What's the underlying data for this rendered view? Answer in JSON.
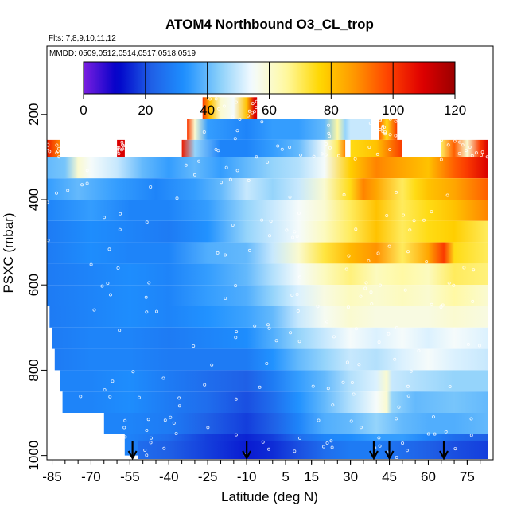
{
  "chart_data": {
    "type": "heatmap",
    "title": "ATOM4 Northbound O3_CL_trop",
    "flights_label": "Flts: 7,8,9,10,11,12",
    "dates_label": "MMDD: 0509,0512,0514,0517,0518,0519",
    "xlabel": "Latitude (deg N)",
    "ylabel": "PSXC (mbar)",
    "xlim": [
      -87,
      85
    ],
    "ylim": [
      1010,
      40
    ],
    "x_ticks": [
      -85,
      -70,
      -55,
      -40,
      -25,
      -10,
      5,
      15,
      30,
      45,
      60,
      75
    ],
    "x_tick_labels": [
      "-85",
      "-70",
      "-55",
      "-40",
      "-25",
      "-10",
      "5",
      "15",
      "30",
      "45",
      "60",
      "75"
    ],
    "y_ticks": [
      200,
      400,
      600,
      800,
      1000
    ],
    "y_tick_labels": [
      "200",
      "400",
      "600",
      "800",
      "1000"
    ],
    "colorbar": {
      "min": 0,
      "max": 120,
      "ticks": [
        0,
        20,
        40,
        60,
        80,
        100,
        120
      ],
      "tick_labels": [
        "0",
        "20",
        "40",
        "60",
        "80",
        "100",
        "120"
      ],
      "colors": [
        "#7b1fe0",
        "#0000c8",
        "#1f5fe6",
        "#1e90ff",
        "#87cefa",
        "#f5fbff",
        "#fff9a0",
        "#ffd700",
        "#ff9900",
        "#ff4500",
        "#e00000",
        "#9b0000"
      ]
    },
    "arrows_lat": [
      -54,
      -10,
      39,
      45,
      66
    ],
    "pressure_bands": [
      {
        "p_top": 160,
        "p_bot": 210,
        "x0": -27,
        "x1": -6,
        "stops": [
          [
            -27,
            100
          ],
          [
            -24,
            80
          ],
          [
            -20,
            60
          ],
          [
            -15,
            55
          ],
          [
            -10,
            80
          ],
          [
            -7,
            110
          ]
        ]
      },
      {
        "p_top": 210,
        "p_bot": 260,
        "x0": -33,
        "x1": 38,
        "stops": [
          [
            -33,
            100
          ],
          [
            -30,
            60
          ],
          [
            -25,
            35
          ],
          [
            -10,
            30
          ],
          [
            0,
            35
          ],
          [
            10,
            35
          ],
          [
            20,
            40
          ],
          [
            25,
            65
          ],
          [
            28,
            45
          ],
          [
            30,
            50
          ],
          [
            38,
            50
          ]
        ]
      },
      {
        "p_top": 210,
        "p_bot": 260,
        "x0": 41,
        "x1": 48,
        "stops": [
          [
            41,
            95
          ],
          [
            44,
            75
          ],
          [
            48,
            100
          ]
        ]
      },
      {
        "p_top": 260,
        "p_bot": 300,
        "x0": -87,
        "x1": -82,
        "stops": [
          [
            -87,
            105
          ],
          [
            -82,
            90
          ]
        ]
      },
      {
        "p_top": 260,
        "p_bot": 300,
        "x0": -60,
        "x1": -57,
        "stops": [
          [
            -60,
            110
          ],
          [
            -57,
            110
          ]
        ]
      },
      {
        "p_top": 260,
        "p_bot": 300,
        "x0": -35,
        "x1": 28,
        "stops": [
          [
            -35,
            105
          ],
          [
            -30,
            45
          ],
          [
            -20,
            30
          ],
          [
            -10,
            30
          ],
          [
            0,
            35
          ],
          [
            10,
            40
          ],
          [
            20,
            55
          ],
          [
            25,
            70
          ],
          [
            28,
            90
          ]
        ]
      },
      {
        "p_top": 260,
        "p_bot": 300,
        "x0": 30,
        "x1": 50,
        "stops": [
          [
            30,
            75
          ],
          [
            40,
            80
          ],
          [
            50,
            100
          ]
        ]
      },
      {
        "p_top": 260,
        "p_bot": 300,
        "x0": 65,
        "x1": 83,
        "stops": [
          [
            65,
            70
          ],
          [
            70,
            95
          ],
          [
            75,
            60
          ],
          [
            80,
            100
          ],
          [
            83,
            110
          ]
        ]
      },
      {
        "p_top": 300,
        "p_bot": 350,
        "x0": -87,
        "x1": 83,
        "stops": [
          [
            -87,
            40
          ],
          [
            -80,
            42
          ],
          [
            -75,
            60
          ],
          [
            -70,
            55
          ],
          [
            -60,
            50
          ],
          [
            -50,
            40
          ],
          [
            -40,
            35
          ],
          [
            -30,
            40
          ],
          [
            -20,
            35
          ],
          [
            -10,
            40
          ],
          [
            0,
            45
          ],
          [
            10,
            48
          ],
          [
            20,
            55
          ],
          [
            30,
            78
          ],
          [
            40,
            90
          ],
          [
            50,
            85
          ],
          [
            60,
            80
          ],
          [
            70,
            95
          ],
          [
            75,
            100
          ],
          [
            83,
            110
          ]
        ]
      },
      {
        "p_top": 350,
        "p_bot": 400,
        "x0": -87,
        "x1": 83,
        "stops": [
          [
            -87,
            35
          ],
          [
            -75,
            40
          ],
          [
            -60,
            35
          ],
          [
            -45,
            30
          ],
          [
            -30,
            35
          ],
          [
            -20,
            40
          ],
          [
            -10,
            50
          ],
          [
            0,
            45
          ],
          [
            10,
            50
          ],
          [
            20,
            60
          ],
          [
            30,
            75
          ],
          [
            35,
            90
          ],
          [
            40,
            85
          ],
          [
            50,
            70
          ],
          [
            55,
            75
          ],
          [
            60,
            80
          ],
          [
            70,
            85
          ],
          [
            83,
            95
          ]
        ]
      },
      {
        "p_top": 400,
        "p_bot": 450,
        "x0": -87,
        "x1": 83,
        "stops": [
          [
            -87,
            30
          ],
          [
            -70,
            35
          ],
          [
            -55,
            30
          ],
          [
            -40,
            30
          ],
          [
            -25,
            35
          ],
          [
            -10,
            45
          ],
          [
            0,
            50
          ],
          [
            10,
            55
          ],
          [
            20,
            60
          ],
          [
            30,
            70
          ],
          [
            40,
            80
          ],
          [
            50,
            70
          ],
          [
            60,
            75
          ],
          [
            70,
            80
          ],
          [
            83,
            90
          ]
        ]
      },
      {
        "p_top": 450,
        "p_bot": 500,
        "x0": -87,
        "x1": 83,
        "stops": [
          [
            -87,
            28
          ],
          [
            -70,
            32
          ],
          [
            -55,
            30
          ],
          [
            -40,
            28
          ],
          [
            -25,
            33
          ],
          [
            -10,
            45
          ],
          [
            0,
            50
          ],
          [
            10,
            55
          ],
          [
            20,
            62
          ],
          [
            30,
            70
          ],
          [
            40,
            80
          ],
          [
            50,
            70
          ],
          [
            60,
            75
          ],
          [
            70,
            78
          ],
          [
            83,
            70
          ]
        ]
      },
      {
        "p_top": 500,
        "p_bot": 550,
        "x0": -87,
        "x1": 83,
        "stops": [
          [
            -87,
            28
          ],
          [
            -70,
            32
          ],
          [
            -55,
            30
          ],
          [
            -40,
            30
          ],
          [
            -25,
            38
          ],
          [
            -10,
            40
          ],
          [
            0,
            50
          ],
          [
            10,
            60
          ],
          [
            20,
            72
          ],
          [
            30,
            82
          ],
          [
            40,
            88
          ],
          [
            50,
            70
          ],
          [
            60,
            85
          ],
          [
            66,
            100
          ],
          [
            70,
            75
          ],
          [
            83,
            70
          ]
        ]
      },
      {
        "p_top": 550,
        "p_bot": 600,
        "x0": -87,
        "x1": 83,
        "stops": [
          [
            -87,
            28
          ],
          [
            -70,
            30
          ],
          [
            -55,
            32
          ],
          [
            -40,
            30
          ],
          [
            -25,
            35
          ],
          [
            -10,
            40
          ],
          [
            0,
            48
          ],
          [
            10,
            55
          ],
          [
            20,
            62
          ],
          [
            30,
            68
          ],
          [
            40,
            62
          ],
          [
            50,
            65
          ],
          [
            60,
            62
          ],
          [
            70,
            70
          ],
          [
            83,
            68
          ]
        ]
      },
      {
        "p_top": 600,
        "p_bot": 650,
        "x0": -87,
        "x1": 83,
        "stops": [
          [
            -87,
            28
          ],
          [
            -70,
            30
          ],
          [
            -55,
            32
          ],
          [
            -40,
            30
          ],
          [
            -25,
            35
          ],
          [
            -10,
            38
          ],
          [
            0,
            45
          ],
          [
            10,
            52
          ],
          [
            20,
            58
          ],
          [
            30,
            62
          ],
          [
            40,
            60
          ],
          [
            50,
            62
          ],
          [
            60,
            60
          ],
          [
            70,
            65
          ],
          [
            83,
            60
          ]
        ]
      },
      {
        "p_top": 650,
        "p_bot": 700,
        "x0": -86,
        "x1": 83,
        "stops": [
          [
            -86,
            28
          ],
          [
            -70,
            30
          ],
          [
            -55,
            32
          ],
          [
            -40,
            30
          ],
          [
            -25,
            33
          ],
          [
            -10,
            36
          ],
          [
            0,
            40
          ],
          [
            10,
            50
          ],
          [
            20,
            56
          ],
          [
            30,
            60
          ],
          [
            40,
            58
          ],
          [
            50,
            58
          ],
          [
            60,
            58
          ],
          [
            70,
            60
          ],
          [
            83,
            58
          ]
        ]
      },
      {
        "p_top": 700,
        "p_bot": 750,
        "x0": -85,
        "x1": 83,
        "stops": [
          [
            -85,
            28
          ],
          [
            -70,
            30
          ],
          [
            -55,
            30
          ],
          [
            -40,
            28
          ],
          [
            -25,
            30
          ],
          [
            -10,
            32
          ],
          [
            0,
            38
          ],
          [
            10,
            45
          ],
          [
            20,
            50
          ],
          [
            30,
            55
          ],
          [
            40,
            52
          ],
          [
            50,
            55
          ],
          [
            60,
            52
          ],
          [
            70,
            55
          ],
          [
            83,
            52
          ]
        ]
      },
      {
        "p_top": 750,
        "p_bot": 800,
        "x0": -84,
        "x1": 83,
        "stops": [
          [
            -84,
            28
          ],
          [
            -70,
            30
          ],
          [
            -55,
            30
          ],
          [
            -40,
            28
          ],
          [
            -25,
            28
          ],
          [
            -10,
            28
          ],
          [
            0,
            33
          ],
          [
            10,
            40
          ],
          [
            20,
            45
          ],
          [
            30,
            50
          ],
          [
            40,
            48
          ],
          [
            50,
            52
          ],
          [
            60,
            55
          ],
          [
            70,
            52
          ],
          [
            83,
            50
          ]
        ]
      },
      {
        "p_top": 800,
        "p_bot": 850,
        "x0": -82,
        "x1": 83,
        "stops": [
          [
            -82,
            30
          ],
          [
            -70,
            30
          ],
          [
            -55,
            32
          ],
          [
            -40,
            28
          ],
          [
            -25,
            25
          ],
          [
            -10,
            22
          ],
          [
            0,
            28
          ],
          [
            10,
            35
          ],
          [
            20,
            40
          ],
          [
            30,
            48
          ],
          [
            40,
            52
          ],
          [
            44,
            60
          ],
          [
            46,
            50
          ],
          [
            55,
            48
          ],
          [
            70,
            45
          ],
          [
            83,
            45
          ]
        ]
      },
      {
        "p_top": 850,
        "p_bot": 900,
        "x0": -81,
        "x1": 83,
        "stops": [
          [
            -81,
            30
          ],
          [
            -70,
            30
          ],
          [
            -55,
            32
          ],
          [
            -40,
            28
          ],
          [
            -25,
            25
          ],
          [
            -10,
            20
          ],
          [
            0,
            25
          ],
          [
            10,
            33
          ],
          [
            20,
            40
          ],
          [
            30,
            48
          ],
          [
            40,
            55
          ],
          [
            44,
            60
          ],
          [
            46,
            45
          ],
          [
            55,
            40
          ],
          [
            70,
            42
          ],
          [
            83,
            40
          ]
        ]
      },
      {
        "p_top": 900,
        "p_bot": 950,
        "x0": -65,
        "x1": 83,
        "stops": [
          [
            -65,
            30
          ],
          [
            -55,
            30
          ],
          [
            -40,
            28
          ],
          [
            -25,
            22
          ],
          [
            -10,
            18
          ],
          [
            0,
            22
          ],
          [
            10,
            30
          ],
          [
            20,
            38
          ],
          [
            30,
            40
          ],
          [
            40,
            45
          ],
          [
            50,
            40
          ],
          [
            60,
            38
          ],
          [
            70,
            38
          ],
          [
            83,
            40
          ]
        ]
      },
      {
        "p_top": 950,
        "p_bot": 1000,
        "x0": -57,
        "x1": 83,
        "stops": [
          [
            -57,
            30
          ],
          [
            -50,
            28
          ],
          [
            -40,
            25
          ],
          [
            -25,
            18
          ],
          [
            -10,
            15
          ],
          [
            0,
            18
          ],
          [
            10,
            25
          ],
          [
            20,
            30
          ],
          [
            30,
            32
          ],
          [
            40,
            35
          ],
          [
            50,
            35
          ],
          [
            60,
            30
          ],
          [
            70,
            25
          ],
          [
            83,
            22
          ]
        ]
      },
      {
        "p_top": 965,
        "p_bot": 1010,
        "x0": -52,
        "x1": 83,
        "stops": [
          [
            -52,
            25
          ],
          [
            -40,
            22
          ],
          [
            -25,
            18
          ],
          [
            -10,
            14
          ],
          [
            0,
            16
          ],
          [
            10,
            20
          ],
          [
            20,
            25
          ],
          [
            30,
            28
          ],
          [
            40,
            28
          ],
          [
            50,
            25
          ],
          [
            60,
            22
          ],
          [
            70,
            20
          ],
          [
            83,
            18
          ]
        ]
      }
    ]
  }
}
